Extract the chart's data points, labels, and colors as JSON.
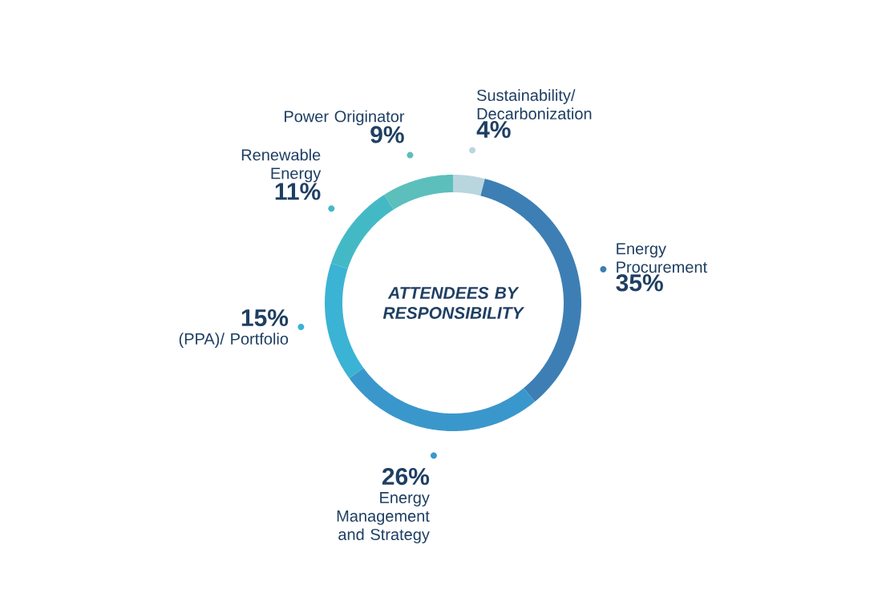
{
  "chart_data": {
    "type": "donut",
    "title": "ATTENDEES BY RESPONSIBILITY",
    "categories": [
      "Sustainability/ Decarbonization",
      "Energy Procurement",
      "Energy Management and Strategy",
      "(PPA)/ Portfolio",
      "Renewable Energy",
      "Power Originator"
    ],
    "values": [
      4,
      35,
      26,
      15,
      11,
      9
    ],
    "value_labels": [
      "4%",
      "35%",
      "26%",
      "15%",
      "11%",
      "9%"
    ],
    "colors": [
      "#b9d6df",
      "#3d7fb4",
      "#3a97cc",
      "#3bb3d4",
      "#44b9c6",
      "#5cbfbc"
    ]
  }
}
